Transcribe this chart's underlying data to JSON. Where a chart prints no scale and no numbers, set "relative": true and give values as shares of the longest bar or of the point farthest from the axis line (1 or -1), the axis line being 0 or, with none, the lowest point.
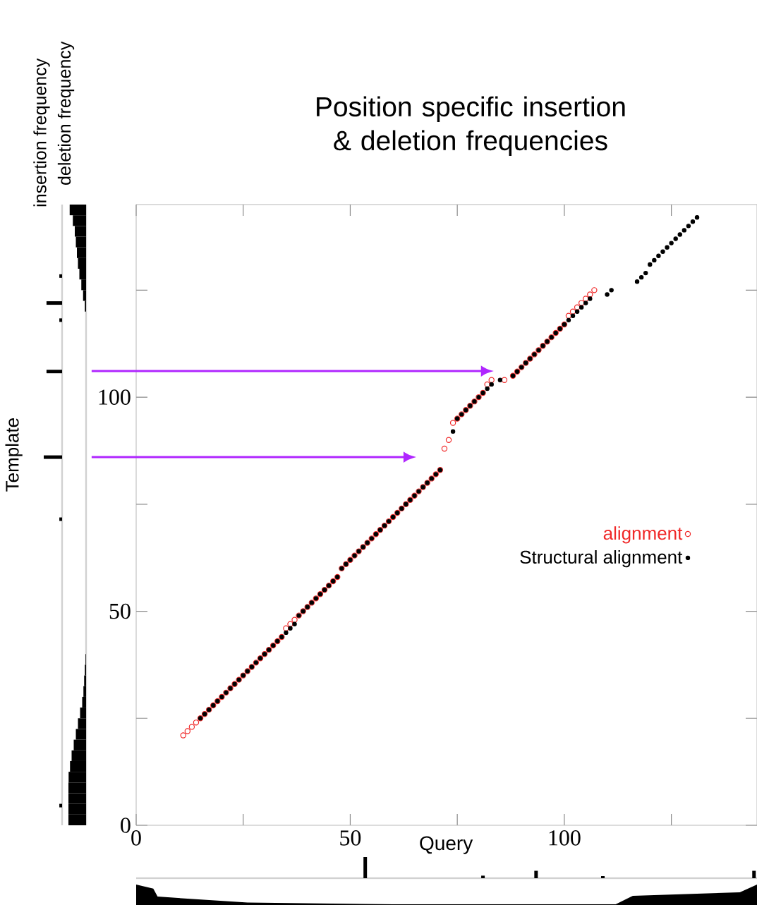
{
  "chart_data": [
    {
      "type": "scatter",
      "title": "Position specific insertion & deletion frequencies",
      "xlabel": "Query",
      "ylabel": "Template",
      "xlim": [
        0,
        145
      ],
      "ylim": [
        0,
        145
      ],
      "xticks": [
        0,
        {
          "value": 25,
          "label": null
        },
        50,
        {
          "value": 75,
          "label": null
        },
        100,
        {
          "value": 125,
          "label": null
        }
      ],
      "yticks": [
        0,
        {
          "value": 25,
          "label": null
        },
        50,
        {
          "value": 75,
          "label": null
        },
        100,
        {
          "value": 125,
          "label": null
        }
      ],
      "legend": "right",
      "marker": "circle",
      "series": [
        {
          "name": "alignment",
          "color": "#f02828",
          "x": [
            11,
            12,
            13,
            14,
            15,
            16,
            17,
            18,
            19,
            20,
            21,
            22,
            23,
            24,
            25,
            26,
            27,
            28,
            29,
            30,
            31,
            32,
            33,
            34,
            35,
            36,
            37,
            38,
            39,
            40,
            41,
            42,
            43,
            44,
            45,
            46,
            47,
            48,
            49,
            50,
            51,
            52,
            53,
            54,
            55,
            56,
            57,
            58,
            59,
            60,
            61,
            62,
            63,
            64,
            65,
            66,
            67,
            68,
            69,
            70,
            71,
            72,
            73,
            74,
            75,
            76,
            77,
            78,
            79,
            80,
            81,
            82,
            83,
            86,
            88,
            89,
            90,
            91,
            92,
            93,
            94,
            95,
            96,
            97,
            98,
            99,
            100,
            101,
            102,
            103,
            104,
            105,
            106,
            107
          ],
          "values": [
            21,
            22,
            23,
            24,
            25,
            26,
            27,
            28,
            29,
            30,
            31,
            32,
            33,
            34,
            35,
            36,
            37,
            38,
            39,
            40,
            41,
            42,
            43,
            44,
            46,
            47,
            48,
            49,
            50,
            51,
            52,
            53,
            54,
            55,
            56,
            57,
            58,
            60,
            61,
            62,
            63,
            64,
            65,
            66,
            67,
            68,
            69,
            70,
            71,
            72,
            73,
            74,
            75,
            76,
            77,
            78,
            79,
            80,
            81,
            82,
            83,
            88,
            90,
            94,
            95,
            96,
            97,
            98,
            99,
            100,
            101,
            103,
            104,
            104,
            105,
            106,
            107,
            108,
            109,
            110,
            111,
            112,
            113,
            114,
            115,
            116,
            117,
            119,
            120,
            121,
            122,
            123,
            124,
            125
          ]
        },
        {
          "name": "Structural alignment",
          "color": "#000000",
          "x": [
            15,
            16,
            17,
            18,
            19,
            20,
            21,
            22,
            23,
            24,
            25,
            26,
            27,
            28,
            29,
            30,
            31,
            32,
            33,
            34,
            35,
            36,
            37,
            38,
            39,
            40,
            41,
            42,
            43,
            44,
            45,
            46,
            47,
            48,
            49,
            50,
            51,
            52,
            53,
            54,
            55,
            56,
            57,
            58,
            59,
            60,
            61,
            62,
            63,
            64,
            65,
            66,
            67,
            68,
            69,
            70,
            71,
            74,
            75,
            76,
            77,
            78,
            79,
            80,
            81,
            82,
            83,
            85,
            88,
            89,
            90,
            91,
            92,
            93,
            94,
            95,
            96,
            97,
            98,
            99,
            100,
            101,
            102,
            103,
            104,
            105,
            106,
            110,
            111,
            117,
            118,
            119,
            120,
            121,
            122,
            123,
            124,
            125,
            126,
            127,
            128,
            129,
            130,
            131
          ],
          "values": [
            25,
            26,
            27,
            28,
            29,
            30,
            31,
            32,
            33,
            34,
            35,
            36,
            37,
            38,
            39,
            40,
            41,
            42,
            43,
            44,
            45,
            46,
            47,
            49,
            50,
            51,
            52,
            53,
            54,
            55,
            56,
            57,
            58,
            60,
            61,
            62,
            63,
            64,
            65,
            66,
            67,
            68,
            69,
            70,
            71,
            72,
            73,
            74,
            75,
            76,
            77,
            78,
            79,
            80,
            81,
            82,
            83,
            92,
            95,
            96,
            97,
            98,
            99,
            100,
            101,
            102,
            103,
            104,
            105,
            106,
            107,
            108,
            109,
            110,
            111,
            112,
            113,
            114,
            115,
            116,
            117,
            118,
            119,
            120,
            121,
            122,
            123,
            124,
            125,
            127,
            128,
            129,
            131,
            132,
            133,
            134,
            135,
            136,
            137,
            138,
            139,
            140,
            141,
            142
          ]
        }
      ]
    },
    {
      "type": "bar",
      "orientation": "horizontal",
      "relative": true,
      "title": "insertion frequency",
      "ylim": [
        0,
        145
      ],
      "tick_labels": false,
      "color": "#000000",
      "x": [
        4.6,
        71.5,
        86,
        106,
        118,
        122,
        128.3
      ],
      "values": [
        0.15,
        0.15,
        1,
        0.85,
        0.15,
        0.85,
        0.15
      ]
    },
    {
      "type": "bar",
      "orientation": "horizontal",
      "relative": true,
      "title": "deletion frequency",
      "ylim": [
        0,
        145
      ],
      "tick_labels": false,
      "color": "#000000",
      "x": [
        1.25,
        3.75,
        6.25,
        8.75,
        11.25,
        13.75,
        16.25,
        18.75,
        21.25,
        23.75,
        26.25,
        28.75,
        31.25,
        33.75,
        36.25,
        38.75,
        121.25,
        123.75,
        126.25,
        128.75,
        131.25,
        133.75,
        136.25,
        138.75,
        141.25,
        143.75
      ],
      "values": [
        1,
        1,
        1,
        1,
        0.99,
        0.91,
        0.82,
        0.7,
        0.58,
        0.46,
        0.34,
        0.22,
        0.15,
        0.11,
        0.07,
        0.03,
        0.07,
        0.17,
        0.27,
        0.38,
        0.46,
        0.52,
        0.58,
        0.64,
        0.75,
        0.93
      ]
    },
    {
      "type": "bar",
      "relative": true,
      "xlim": [
        0,
        145
      ],
      "tick_labels": false,
      "color": "#000000",
      "x": [
        53.5,
        81,
        93.4,
        109,
        144.3
      ],
      "values": [
        1,
        0.12,
        0.35,
        0.1,
        0.35
      ]
    },
    {
      "type": "area",
      "relative": true,
      "xlim": [
        0,
        145
      ],
      "tick_labels": false,
      "color": "#000000",
      "x": [
        0,
        4,
        5,
        26,
        60,
        112,
        116,
        141,
        145
      ],
      "values": [
        1,
        0.8,
        0.41,
        0.12,
        0.03,
        0.03,
        0.45,
        0.62,
        1
      ]
    }
  ]
}
